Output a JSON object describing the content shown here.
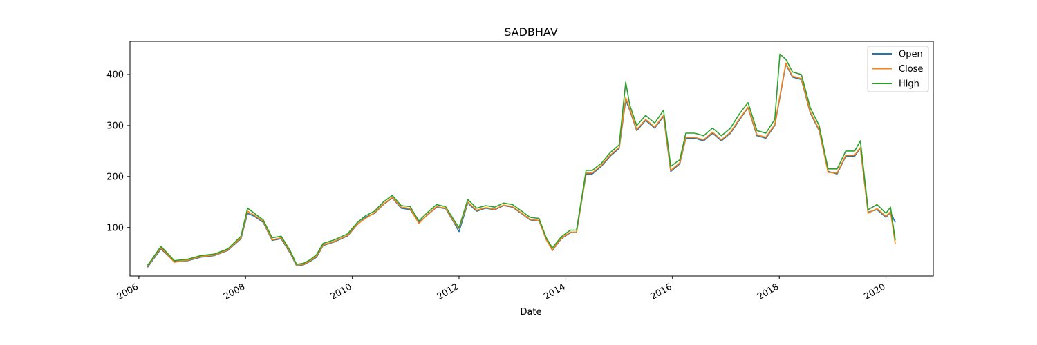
{
  "chart_data": {
    "type": "line",
    "title": "SADBHAV",
    "xlabel": "Date",
    "ylabel": "",
    "xlim": [
      "2005-11-01",
      "2020-11-20"
    ],
    "ylim": [
      5,
      465
    ],
    "x_ticks": [
      "2006",
      "2008",
      "2010",
      "2012",
      "2014",
      "2016",
      "2018",
      "2020"
    ],
    "y_ticks": [
      100,
      200,
      300,
      400
    ],
    "legend_position": "top-right",
    "grid": false,
    "x": [
      "2006-03-01",
      "2006-04-15",
      "2006-06-01",
      "2006-09-01",
      "2006-12-01",
      "2007-03-01",
      "2007-06-01",
      "2007-09-01",
      "2007-12-01",
      "2008-01-15",
      "2008-03-01",
      "2008-05-01",
      "2008-07-01",
      "2008-09-01",
      "2008-11-01",
      "2008-12-15",
      "2009-02-01",
      "2009-03-20",
      "2009-05-01",
      "2009-06-15",
      "2009-09-01",
      "2009-12-01",
      "2010-02-01",
      "2010-04-01",
      "2010-06-01",
      "2010-08-01",
      "2010-10-01",
      "2010-12-01",
      "2011-02-01",
      "2011-04-01",
      "2011-06-01",
      "2011-08-01",
      "2011-10-01",
      "2011-12-01",
      "2012-01-01",
      "2012-03-01",
      "2012-05-01",
      "2012-07-01",
      "2012-09-01",
      "2012-11-01",
      "2013-01-01",
      "2013-03-01",
      "2013-05-01",
      "2013-07-01",
      "2013-08-20",
      "2013-10-01",
      "2013-12-01",
      "2014-02-01",
      "2014-03-15",
      "2014-05-20",
      "2014-07-01",
      "2014-09-01",
      "2014-11-01",
      "2015-01-01",
      "2015-02-15",
      "2015-03-15",
      "2015-05-01",
      "2015-07-01",
      "2015-09-01",
      "2015-11-01",
      "2015-12-20",
      "2016-02-20",
      "2016-04-01",
      "2016-06-01",
      "2016-08-01",
      "2016-10-01",
      "2016-12-01",
      "2017-02-01",
      "2017-04-01",
      "2017-06-01",
      "2017-08-01",
      "2017-10-01",
      "2017-12-01",
      "2018-01-05",
      "2018-02-15",
      "2018-04-01",
      "2018-06-01",
      "2018-08-01",
      "2018-10-01",
      "2018-12-01",
      "2019-02-01",
      "2019-04-01",
      "2019-06-01",
      "2019-07-10",
      "2019-09-01",
      "2019-11-01",
      "2020-01-01",
      "2020-02-01",
      "2020-03-05"
    ],
    "series": [
      {
        "name": "Open",
        "color": "#1f77b4",
        "values": [
          22,
          40,
          58,
          33,
          35,
          42,
          45,
          55,
          78,
          128,
          122,
          110,
          75,
          78,
          50,
          25,
          27,
          34,
          42,
          65,
          72,
          84,
          105,
          120,
          128,
          145,
          158,
          138,
          135,
          110,
          125,
          140,
          137,
          108,
          92,
          148,
          132,
          138,
          135,
          143,
          140,
          128,
          115,
          113,
          78,
          55,
          78,
          90,
          90,
          205,
          205,
          220,
          240,
          255,
          350,
          330,
          290,
          310,
          295,
          318,
          210,
          225,
          275,
          275,
          270,
          285,
          270,
          285,
          310,
          335,
          280,
          275,
          300,
          355,
          420,
          395,
          390,
          325,
          290,
          210,
          205,
          240,
          240,
          255,
          130,
          135,
          120,
          130,
          110
        ]
      },
      {
        "name": "Close",
        "color": "#ff7f0e",
        "values": [
          24,
          42,
          60,
          32,
          36,
          43,
          46,
          56,
          80,
          132,
          124,
          112,
          76,
          80,
          52,
          26,
          28,
          35,
          44,
          66,
          73,
          85,
          106,
          118,
          129,
          146,
          159,
          140,
          137,
          108,
          126,
          141,
          138,
          110,
          98,
          150,
          134,
          139,
          136,
          144,
          141,
          129,
          116,
          114,
          76,
          56,
          79,
          91,
          91,
          207,
          207,
          222,
          242,
          257,
          355,
          332,
          292,
          312,
          297,
          320,
          212,
          227,
          277,
          277,
          272,
          287,
          272,
          287,
          312,
          336,
          282,
          277,
          302,
          358,
          422,
          397,
          392,
          327,
          292,
          208,
          207,
          242,
          242,
          257,
          128,
          137,
          122,
          131,
          68
        ]
      },
      {
        "name": "High",
        "color": "#2ca02c",
        "values": [
          26,
          44,
          63,
          35,
          38,
          45,
          48,
          58,
          83,
          138,
          128,
          115,
          80,
          83,
          55,
          28,
          30,
          37,
          47,
          69,
          76,
          88,
          109,
          123,
          132,
          150,
          163,
          143,
          141,
          113,
          130,
          145,
          141,
          113,
          100,
          155,
          138,
          143,
          140,
          148,
          145,
          133,
          120,
          118,
          80,
          60,
          82,
          95,
          95,
          212,
          212,
          226,
          247,
          262,
          385,
          340,
          300,
          320,
          305,
          330,
          220,
          233,
          285,
          285,
          280,
          295,
          280,
          295,
          322,
          345,
          290,
          285,
          312,
          440,
          430,
          405,
          400,
          335,
          300,
          215,
          215,
          250,
          250,
          270,
          135,
          145,
          128,
          140,
          75
        ]
      }
    ]
  }
}
